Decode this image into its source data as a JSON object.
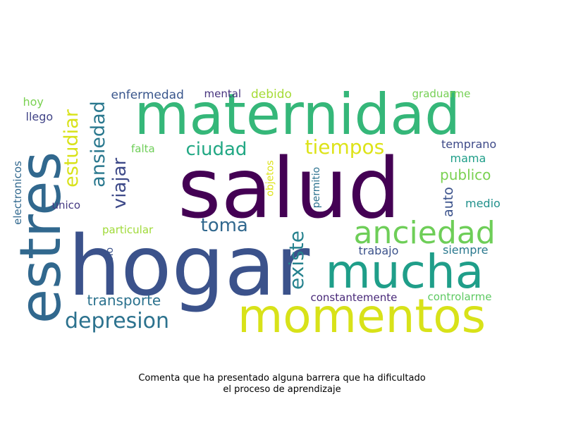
{
  "caption": {
    "line1": "Comenta que ha presentado alguna barrera que ha dificultado",
    "line2": "el proceso de aprendizaje"
  },
  "chart_data": {
    "type": "wordcloud",
    "words": [
      {
        "text": "salud",
        "color": "#440154",
        "vertical": false
      },
      {
        "text": "hogar",
        "color": "#3b528b",
        "vertical": false
      },
      {
        "text": "maternidad",
        "color": "#35b779",
        "vertical": false
      },
      {
        "text": "momentos",
        "color": "#d8e219",
        "vertical": false
      },
      {
        "text": "mucha",
        "color": "#1f9e89",
        "vertical": false
      },
      {
        "text": "estres",
        "color": "#31688e",
        "vertical": true
      },
      {
        "text": "anciedad",
        "color": "#6ece58",
        "vertical": false
      },
      {
        "text": "depresion",
        "color": "#2c728e",
        "vertical": false
      },
      {
        "text": "existe",
        "color": "#26828e",
        "vertical": true
      },
      {
        "text": "tiempos",
        "color": "#dde318",
        "vertical": false
      },
      {
        "text": "estudiar",
        "color": "#d8e219",
        "vertical": true
      },
      {
        "text": "ansiedad",
        "color": "#2a788e",
        "vertical": true
      },
      {
        "text": "ciudad",
        "color": "#22a884",
        "vertical": false
      },
      {
        "text": "viajar",
        "color": "#3e4a89",
        "vertical": true
      },
      {
        "text": "toma",
        "color": "#31688e",
        "vertical": false
      },
      {
        "text": "transporte",
        "color": "#2c728e",
        "vertical": false
      },
      {
        "text": "publico",
        "color": "#7ad151",
        "vertical": false
      },
      {
        "text": "auto",
        "color": "#3b528b",
        "vertical": true
      },
      {
        "text": "enfermedad",
        "color": "#39568c",
        "vertical": false
      },
      {
        "text": "debido",
        "color": "#a5db36",
        "vertical": false
      },
      {
        "text": "mental",
        "color": "#46337e",
        "vertical": false
      },
      {
        "text": "graduarme",
        "color": "#75d054",
        "vertical": false
      },
      {
        "text": "temprano",
        "color": "#3e4a89",
        "vertical": false
      },
      {
        "text": "mama",
        "color": "#1f9e89",
        "vertical": false
      },
      {
        "text": "medio",
        "color": "#21918c",
        "vertical": false
      },
      {
        "text": "siempre",
        "color": "#2a788e",
        "vertical": false
      },
      {
        "text": "trabajo",
        "color": "#3b528b",
        "vertical": false
      },
      {
        "text": "controlarme",
        "color": "#5ec962",
        "vertical": false
      },
      {
        "text": "constantemente",
        "color": "#482878",
        "vertical": false
      },
      {
        "text": "particular",
        "color": "#a0da39",
        "vertical": false
      },
      {
        "text": "falta",
        "color": "#6ece58",
        "vertical": false
      },
      {
        "text": "unico",
        "color": "#443983",
        "vertical": false
      },
      {
        "text": "hoy",
        "color": "#7ad151",
        "vertical": false
      },
      {
        "text": "llego",
        "color": "#414487",
        "vertical": false
      },
      {
        "text": "electronicos",
        "color": "#31688e",
        "vertical": true
      },
      {
        "text": "solo",
        "color": "#3b528b",
        "vertical": true
      },
      {
        "text": "objetos",
        "color": "#dde318",
        "vertical": true
      },
      {
        "text": "permitio",
        "color": "#2c728e",
        "vertical": true
      }
    ]
  }
}
